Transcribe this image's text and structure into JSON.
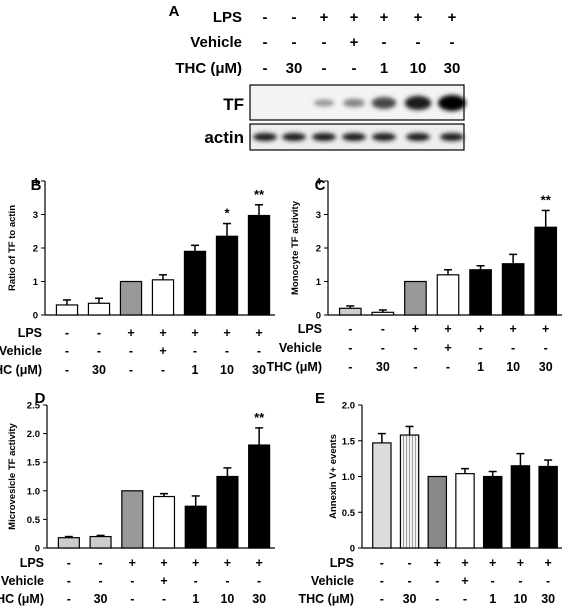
{
  "conditions": {
    "row_labels": [
      "LPS",
      "Vehicle",
      "THC (μM)"
    ],
    "lps": [
      "-",
      "-",
      "+",
      "+",
      "+",
      "+",
      "+"
    ],
    "vehicle": [
      "-",
      "-",
      "-",
      "+",
      "-",
      "-",
      "-"
    ],
    "thc": [
      "-",
      "30",
      "-",
      "-",
      "1",
      "10",
      "30"
    ]
  },
  "panel_a": {
    "letter": "A",
    "blot_labels": [
      "TF",
      "actin"
    ],
    "tf_intensity": [
      0.0,
      0.0,
      0.25,
      0.35,
      0.65,
      0.85,
      1.0
    ],
    "actin_intensity": [
      0.85,
      0.85,
      0.85,
      0.85,
      0.85,
      0.85,
      0.85
    ]
  },
  "chart_data": [
    {
      "type": "bar",
      "panel": "B",
      "ylabel": "Ratio of TF to actin",
      "ylim": [
        0,
        4
      ],
      "yticks": [
        "0",
        "1",
        "2",
        "3",
        "4"
      ],
      "values": [
        0.3,
        0.35,
        1.0,
        1.05,
        1.9,
        2.35,
        2.97
      ],
      "errors": [
        0.15,
        0.15,
        0.0,
        0.15,
        0.18,
        0.38,
        0.32
      ],
      "fills": [
        "#ffffff",
        "#ffffff",
        "#999999",
        "#ffffff",
        "#000000",
        "#000000",
        "#000000"
      ],
      "significance": [
        "",
        "",
        "",
        "",
        "",
        "*",
        "**"
      ]
    },
    {
      "type": "bar",
      "panel": "C",
      "ylabel": "Monocyte TF activity",
      "ylim": [
        0,
        4
      ],
      "yticks": [
        "0",
        "1",
        "2",
        "3",
        "4"
      ],
      "values": [
        0.2,
        0.08,
        1.0,
        1.2,
        1.35,
        1.53,
        2.62
      ],
      "errors": [
        0.07,
        0.07,
        0.0,
        0.15,
        0.12,
        0.28,
        0.5
      ],
      "fills": [
        "#cccccc",
        "#ffffff",
        "#999999",
        "#ffffff",
        "#000000",
        "#000000",
        "#000000"
      ],
      "significance": [
        "",
        "",
        "",
        "",
        "",
        "",
        "**"
      ]
    },
    {
      "type": "bar",
      "panel": "D",
      "ylabel": "Microvesicle TF activity",
      "ylim": [
        0,
        2.5
      ],
      "yticks": [
        "0",
        "0.5",
        "1.0",
        "1.5",
        "2.0",
        "2.5"
      ],
      "values": [
        0.18,
        0.2,
        1.0,
        0.9,
        0.73,
        1.25,
        1.8
      ],
      "errors": [
        0.02,
        0.02,
        0.0,
        0.05,
        0.18,
        0.15,
        0.3
      ],
      "fills": [
        "#cccccc",
        "#cccccc",
        "#999999",
        "#ffffff",
        "#000000",
        "#000000",
        "#000000"
      ],
      "significance": [
        "",
        "",
        "",
        "",
        "",
        "",
        "**"
      ]
    },
    {
      "type": "bar",
      "panel": "E",
      "ylabel": "Annexin V+ events",
      "ylim": [
        0,
        2.0
      ],
      "yticks": [
        "0",
        "0.5",
        "1.0",
        "1.5",
        "2.0"
      ],
      "values": [
        1.47,
        1.58,
        1.0,
        1.04,
        1.0,
        1.15,
        1.14
      ],
      "errors": [
        0.13,
        0.12,
        0.0,
        0.07,
        0.07,
        0.17,
        0.09
      ],
      "fills": [
        "#dddddd",
        "#eeeeee",
        "#888888",
        "#ffffff",
        "#000000",
        "#000000",
        "#000000"
      ],
      "hatched": [
        false,
        true,
        false,
        false,
        false,
        false,
        false
      ],
      "significance": [
        "",
        "",
        "",
        "",
        "",
        "",
        ""
      ]
    }
  ]
}
